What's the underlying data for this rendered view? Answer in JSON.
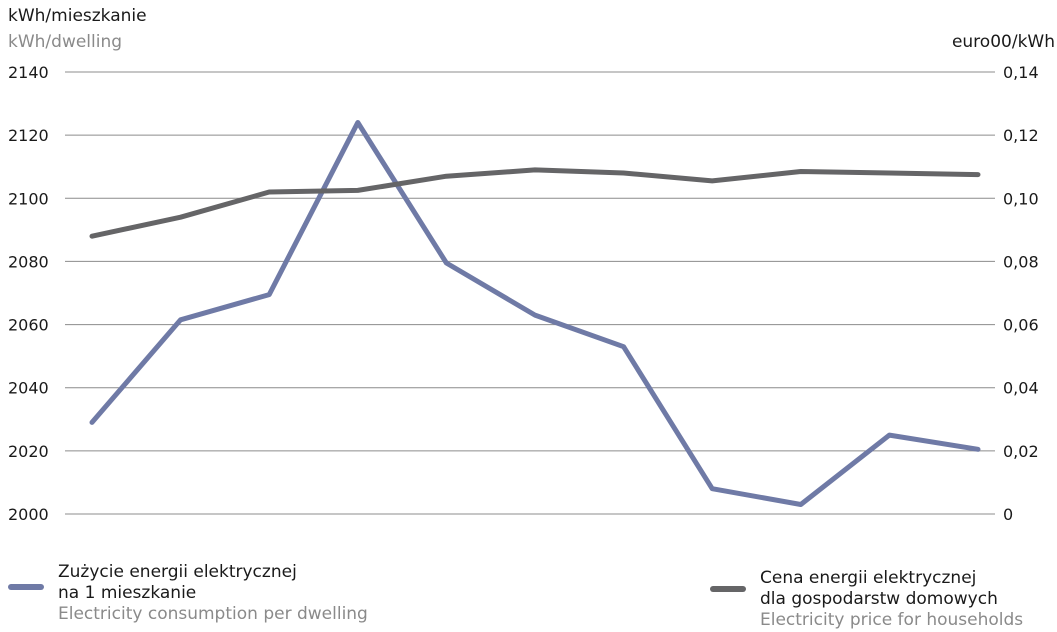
{
  "chart_data": {
    "type": "line",
    "left_axis": {
      "label_pl": "kWh/mieszkanie",
      "label_en": "kWh/dwelling",
      "ylim": [
        2000,
        2140
      ],
      "ticks": [
        "2000",
        "2020",
        "2040",
        "2060",
        "2080",
        "2100",
        "2120",
        "2140"
      ]
    },
    "right_axis": {
      "label": "euro00/kWh",
      "ylim": [
        0,
        0.14
      ],
      "ticks": [
        "0",
        "0,02",
        "0,04",
        "0,06",
        "0,08",
        "0,10",
        "0,12",
        "0,14"
      ]
    },
    "grid": true,
    "x_count": 10,
    "series": [
      {
        "name_pl": "Zużycie energii elektrycznej na 1 mieszkanie",
        "name_pl_line1": "Zużycie energii elektrycznej",
        "name_pl_line2": "na 1 mieszkanie",
        "name_en": "Electricity consumption per dwelling",
        "axis": "left",
        "color": "#6f7aa6",
        "values": [
          2029,
          2061.5,
          2069.5,
          2124,
          2079.5,
          2063,
          2053,
          2008,
          2003,
          2025,
          2020.5
        ]
      },
      {
        "name_pl": "Cena energii elektrycznej dla gospodarstw domowych",
        "name_pl_line1": "Cena energii elektrycznej",
        "name_pl_line2": "dla gospodarstw domowych",
        "name_en": "Electricity price for households",
        "axis": "right",
        "color": "#656567",
        "values": [
          0.088,
          0.094,
          0.102,
          0.1025,
          0.107,
          0.109,
          0.108,
          0.1055,
          0.1085,
          0.108,
          0.1075
        ]
      }
    ]
  }
}
